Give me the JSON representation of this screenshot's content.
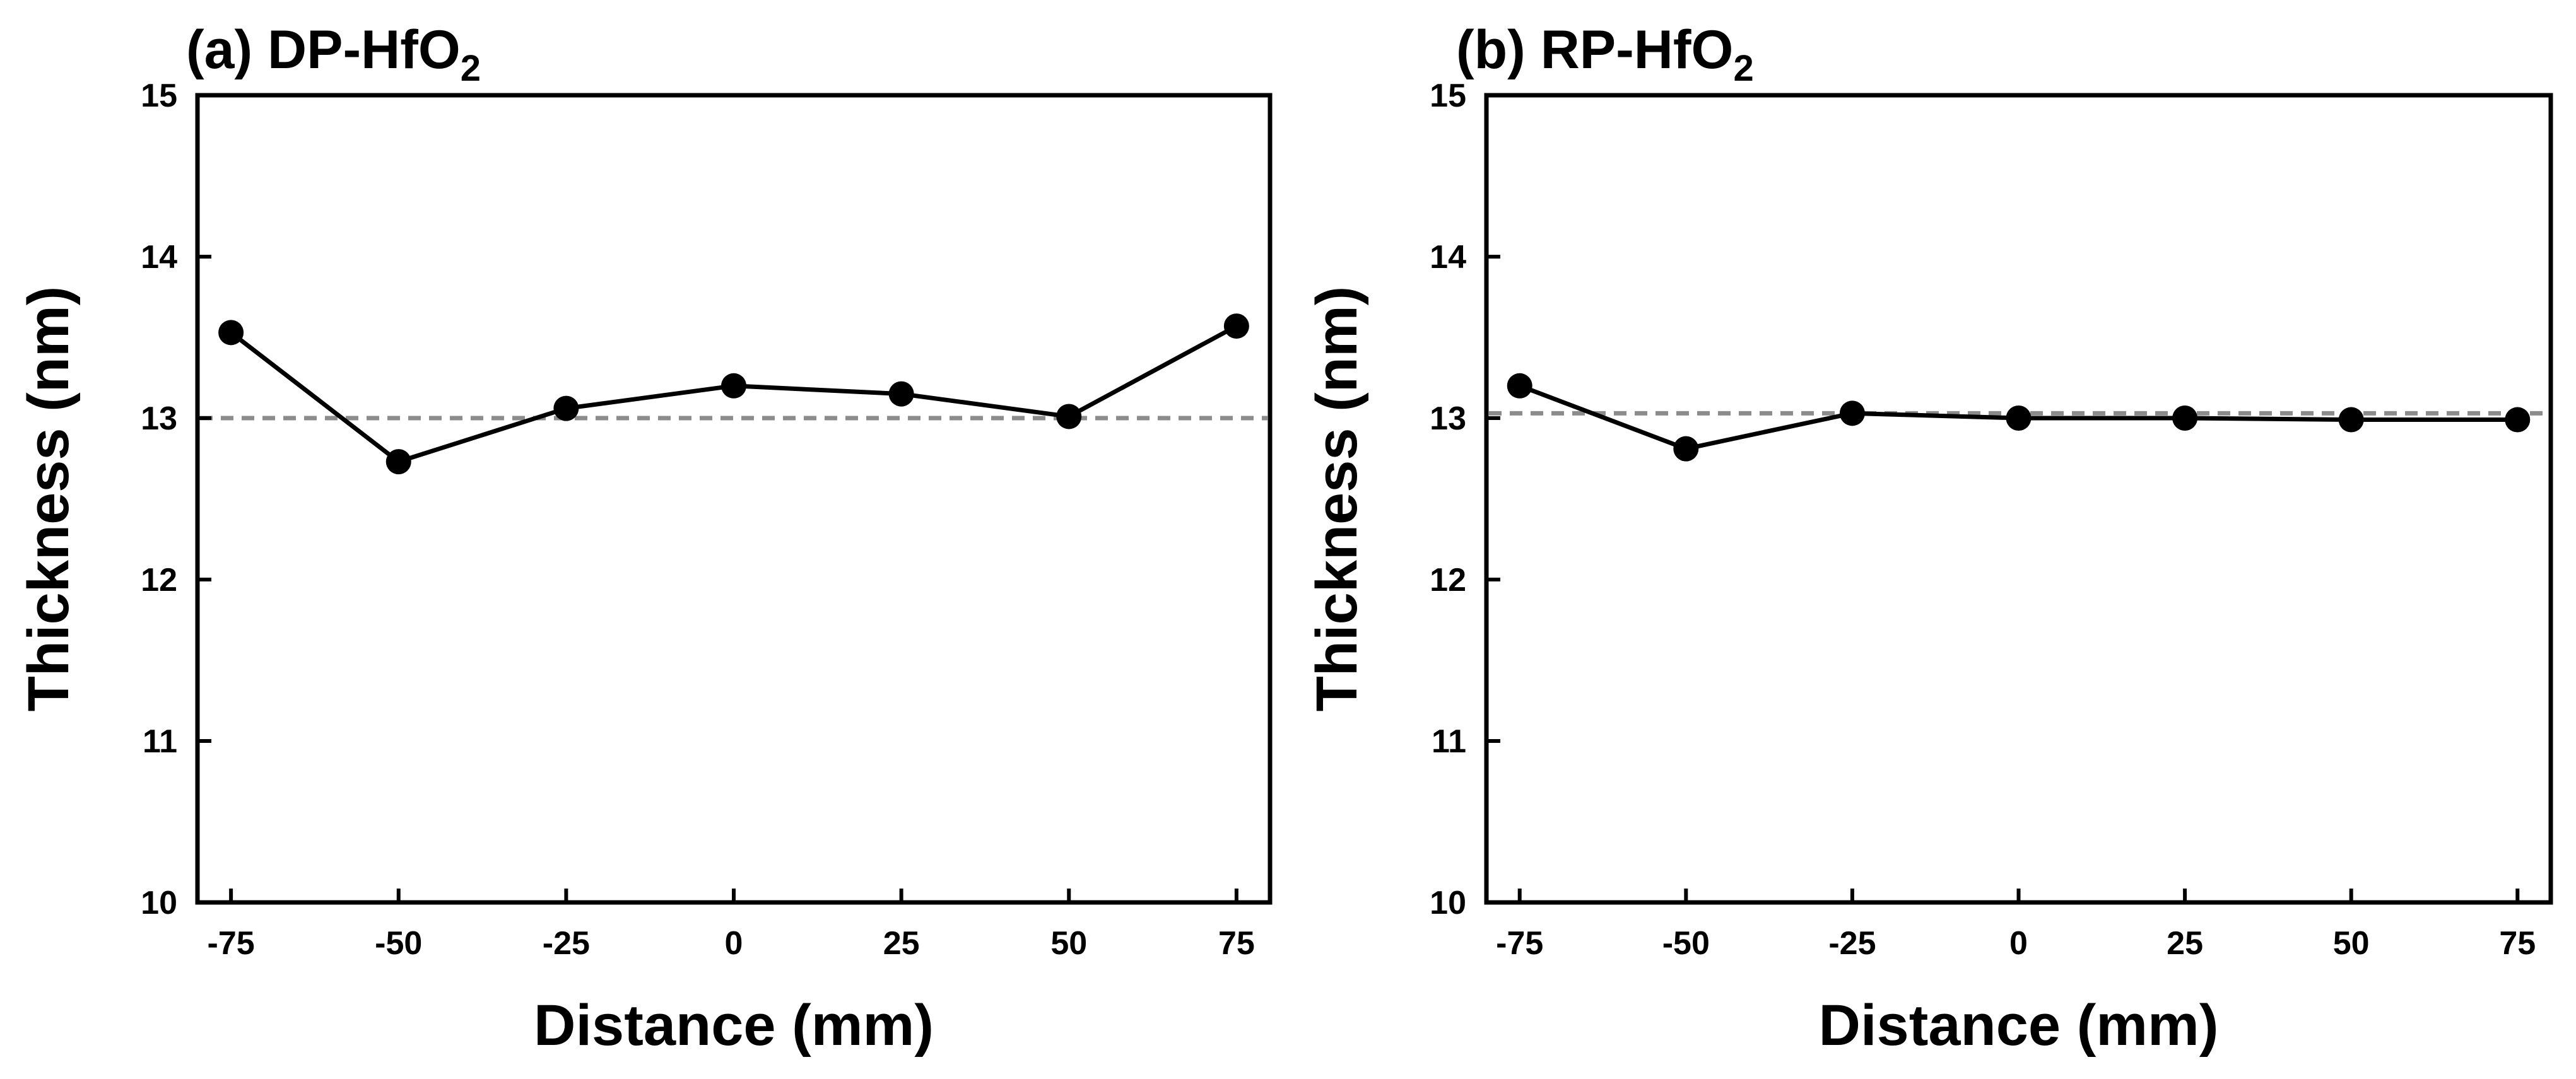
{
  "chart_data": [
    {
      "type": "line",
      "title": "(a) DP-HfO",
      "title_subscript": "2",
      "xlabel": "Distance (mm)",
      "ylabel": "Thickness (nm)",
      "xlim": [
        -80,
        80
      ],
      "ylim": [
        10,
        15
      ],
      "xticks": [
        -75,
        -50,
        -25,
        0,
        25,
        50,
        75
      ],
      "xtick_labels": [
        "-75",
        "-50",
        "-25",
        "0",
        "25",
        "50",
        "75"
      ],
      "yticks": [
        10,
        11,
        12,
        13,
        14,
        15
      ],
      "ytick_labels": [
        "10",
        "11",
        "12",
        "13",
        "14",
        "15"
      ],
      "reference_line": {
        "y": 13.0,
        "style": "dashed",
        "color": "#8c8c8c"
      },
      "series": [
        {
          "name": "DP-HfO2",
          "x": [
            -75,
            -50,
            -25,
            0,
            25,
            50,
            75
          ],
          "y": [
            13.53,
            12.73,
            13.06,
            13.2,
            13.15,
            13.01,
            13.57
          ],
          "color": "#000000",
          "marker": "circle"
        }
      ],
      "grid": false
    },
    {
      "type": "line",
      "title": "(b) RP-HfO",
      "title_subscript": "2",
      "xlabel": "Distance (mm)",
      "ylabel": "Thickness (nm)",
      "xlim": [
        -80,
        80
      ],
      "ylim": [
        10,
        15
      ],
      "xticks": [
        -75,
        -50,
        -25,
        0,
        25,
        50,
        75
      ],
      "xtick_labels": [
        "-75",
        "-50",
        "-25",
        "0",
        "25",
        "50",
        "75"
      ],
      "yticks": [
        10,
        11,
        12,
        13,
        14,
        15
      ],
      "ytick_labels": [
        "10",
        "11",
        "12",
        "13",
        "14",
        "15"
      ],
      "reference_line": {
        "y": 13.03,
        "style": "dashed",
        "color": "#8c8c8c"
      },
      "series": [
        {
          "name": "RP-HfO2",
          "x": [
            -75,
            -50,
            -25,
            0,
            25,
            50,
            75
          ],
          "y": [
            13.2,
            12.81,
            13.03,
            13.0,
            13.0,
            12.99,
            12.99
          ],
          "color": "#000000",
          "marker": "circle"
        }
      ],
      "grid": false
    }
  ]
}
